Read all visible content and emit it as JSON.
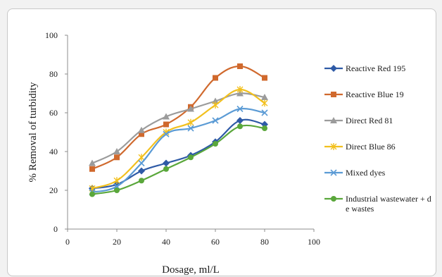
{
  "chart_data": {
    "type": "line",
    "xlabel": "Dosage, ml/L",
    "ylabel": "% Removal of turbidity",
    "xlim": [
      0,
      100
    ],
    "ylim": [
      0,
      100
    ],
    "xticks": [
      0,
      20,
      40,
      60,
      80,
      100
    ],
    "yticks": [
      0,
      20,
      40,
      60,
      80,
      100
    ],
    "grid": false,
    "legend_position": "right",
    "x": [
      10,
      20,
      30,
      40,
      50,
      60,
      70,
      80
    ],
    "series": [
      {
        "name": "Reactive Red 195",
        "color": "#2e5aa6",
        "marker": "diamond",
        "values": [
          21,
          23,
          30,
          34,
          38,
          45,
          56,
          54
        ]
      },
      {
        "name": "Reactive Blue 19",
        "color": "#d0692d",
        "marker": "square",
        "values": [
          31,
          37,
          49,
          54,
          63,
          78,
          84,
          78
        ]
      },
      {
        "name": "Direct Red 81",
        "color": "#9b9b9b",
        "marker": "triangle",
        "values": [
          34,
          40,
          51,
          58,
          62,
          66,
          70,
          68
        ]
      },
      {
        "name": "Direct Blue 86",
        "color": "#f2c01e",
        "marker": "star",
        "values": [
          21,
          25,
          37,
          50,
          55,
          64,
          72,
          65
        ]
      },
      {
        "name": "Mixed dyes",
        "color": "#5b9bd5",
        "marker": "x",
        "values": [
          19,
          22,
          34,
          49,
          52,
          56,
          62,
          60
        ]
      },
      {
        "name": "Industrial wastewater + dye wastes",
        "color": "#5aa73b",
        "marker": "circle",
        "values": [
          18,
          20,
          25,
          31,
          37,
          44,
          53,
          52
        ]
      }
    ]
  }
}
